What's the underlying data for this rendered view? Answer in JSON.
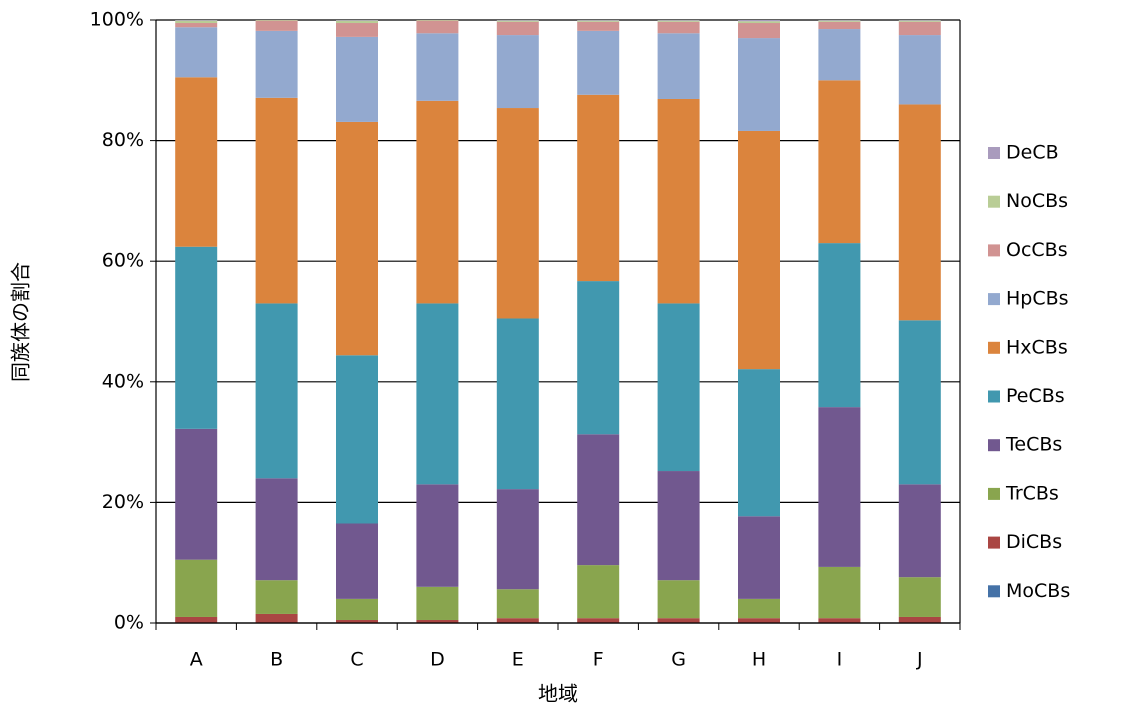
{
  "chart_data": {
    "type": "stacked_bar",
    "x_label": "地域",
    "y_label": "同族体の割合",
    "categories": [
      "A",
      "B",
      "C",
      "D",
      "E",
      "F",
      "G",
      "H",
      "I",
      "J"
    ],
    "series": [
      {
        "name": "MoCBs",
        "color": "#4572a7",
        "values": [
          0,
          0,
          0,
          0,
          0,
          0,
          0,
          0,
          0,
          0
        ]
      },
      {
        "name": "DiCBs",
        "color": "#aa4643",
        "values": [
          1,
          1.5,
          0.5,
          0.5,
          0.8,
          0.8,
          0.8,
          0.8,
          0.8,
          1
        ]
      },
      {
        "name": "TrCBs",
        "color": "#89a54e",
        "values": [
          9.5,
          5.6,
          3.5,
          5.5,
          4.8,
          8.8,
          6.3,
          3.2,
          8.5,
          6.6
        ]
      },
      {
        "name": "TeCBs",
        "color": "#71588f",
        "values": [
          21.7,
          16.9,
          12.5,
          17,
          16.6,
          21.7,
          18.1,
          13.7,
          26.5,
          15.4
        ]
      },
      {
        "name": "PeCBs",
        "color": "#4198af",
        "values": [
          30.2,
          29,
          27.9,
          30,
          28.3,
          25.4,
          27.8,
          24.4,
          27.2,
          27.2
        ]
      },
      {
        "name": "HxCBs",
        "color": "#db843d",
        "values": [
          28.1,
          34.1,
          38.7,
          33.6,
          34.9,
          30.9,
          33.9,
          39.5,
          27,
          35.8
        ]
      },
      {
        "name": "HpCBs",
        "color": "#93a9cf",
        "values": [
          8.3,
          11.1,
          14.1,
          11.2,
          12.1,
          10.6,
          10.9,
          15.4,
          8.5,
          11.5
        ]
      },
      {
        "name": "OcCBs",
        "color": "#d19392",
        "values": [
          0.7,
          1.7,
          2.3,
          2.1,
          2.2,
          1.5,
          1.9,
          2.5,
          1.2,
          2.2
        ]
      },
      {
        "name": "NoCBs",
        "color": "#b9cd96",
        "values": [
          0.4,
          0.1,
          0.4,
          0.1,
          0.2,
          0.2,
          0.2,
          0.3,
          0.2,
          0.2
        ]
      },
      {
        "name": "DeCB",
        "color": "#a99bbd",
        "values": [
          0.1,
          0,
          0.1,
          0,
          0.1,
          0.1,
          0.1,
          0.2,
          0.1,
          0.1
        ]
      }
    ],
    "ylim": [
      0,
      100
    ],
    "yticks": [
      {
        "value": 0,
        "label": "0%"
      },
      {
        "value": 20,
        "label": "20%"
      },
      {
        "value": 40,
        "label": "40%"
      },
      {
        "value": 60,
        "label": "60%"
      },
      {
        "value": 80,
        "label": "80%"
      },
      {
        "value": 100,
        "label": "100%"
      }
    ],
    "grid": true,
    "legend": "right"
  }
}
